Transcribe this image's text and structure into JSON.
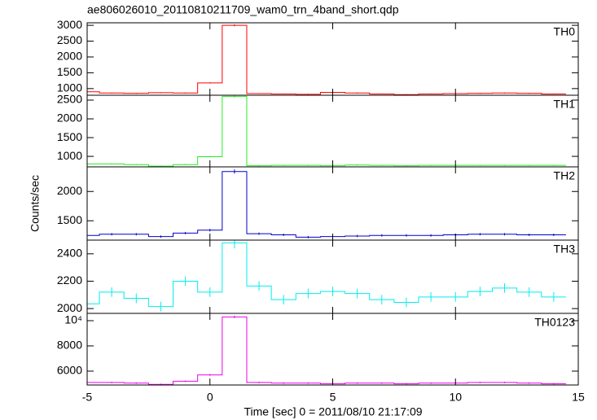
{
  "title": "ae806026010_20110810211709_wam0_trn_4band_short.qdp",
  "x_label": "Time [sec] 0 = 2011/08/10 21:17:09",
  "y_label": "Counts/sec",
  "chart_data": [
    {
      "type": "line",
      "name": "TH0",
      "color": "#ff0000",
      "x": [
        -5,
        -4,
        -3,
        -2,
        -1,
        0,
        1,
        2,
        3,
        4,
        5,
        6,
        7,
        8,
        9,
        10,
        11,
        12,
        13,
        14
      ],
      "values": [
        900,
        860,
        850,
        870,
        860,
        1180,
        3000,
        840,
        830,
        820,
        880,
        860,
        830,
        810,
        830,
        840,
        850,
        860,
        850,
        830
      ],
      "errors": [
        15,
        15,
        15,
        15,
        15,
        18,
        30,
        15,
        15,
        15,
        15,
        15,
        15,
        15,
        15,
        15,
        15,
        15,
        15,
        15
      ],
      "xlim": [
        -5,
        15
      ],
      "xticks": [
        -5,
        0,
        5,
        10,
        15
      ],
      "ylim": [
        790,
        3080
      ],
      "yticks": [
        1000,
        1500,
        2000,
        2500,
        3000
      ]
    },
    {
      "type": "line",
      "name": "TH1",
      "color": "#22ee22",
      "x": [
        -5,
        -4,
        -3,
        -2,
        -1,
        0,
        1,
        2,
        3,
        4,
        5,
        6,
        7,
        8,
        9,
        10,
        11,
        12,
        13,
        14
      ],
      "values": [
        800,
        800,
        780,
        740,
        780,
        990,
        2600,
        750,
        760,
        760,
        750,
        770,
        760,
        750,
        760,
        760,
        760,
        760,
        760,
        760
      ],
      "errors": [
        15,
        15,
        15,
        15,
        15,
        18,
        30,
        15,
        15,
        15,
        15,
        15,
        15,
        15,
        15,
        15,
        15,
        15,
        15,
        15
      ],
      "xlim": [
        -5,
        15
      ],
      "xticks": [
        -5,
        0,
        5,
        10,
        15
      ],
      "ylim": [
        720,
        2630
      ],
      "yticks": [
        1000,
        1500,
        2000,
        2500
      ]
    },
    {
      "type": "line",
      "name": "TH2",
      "color": "#0000cc",
      "x": [
        -5,
        -4,
        -3,
        -2,
        -1,
        0,
        1,
        2,
        3,
        4,
        5,
        6,
        7,
        8,
        9,
        10,
        11,
        12,
        13,
        14
      ],
      "values": [
        1250,
        1270,
        1270,
        1230,
        1290,
        1340,
        2340,
        1280,
        1260,
        1220,
        1230,
        1240,
        1250,
        1250,
        1250,
        1260,
        1270,
        1270,
        1260,
        1260
      ],
      "errors": [
        20,
        20,
        20,
        20,
        20,
        22,
        35,
        20,
        20,
        20,
        20,
        20,
        20,
        20,
        20,
        20,
        20,
        20,
        20,
        20
      ],
      "xlim": [
        -5,
        15
      ],
      "xticks": [
        -5,
        0,
        5,
        10,
        15
      ],
      "ylim": [
        1170,
        2420
      ],
      "yticks": [
        1500,
        2000
      ]
    },
    {
      "type": "line",
      "name": "TH3",
      "color": "#00eeee",
      "x": [
        -5,
        -4,
        -3,
        -2,
        -1,
        0,
        1,
        2,
        3,
        4,
        5,
        6,
        7,
        8,
        9,
        10,
        11,
        12,
        13,
        14
      ],
      "values": [
        2035,
        2120,
        2075,
        2015,
        2200,
        2120,
        2480,
        2165,
        2065,
        2110,
        2125,
        2110,
        2065,
        2045,
        2085,
        2085,
        2125,
        2150,
        2120,
        2085
      ],
      "errors": [
        35,
        35,
        35,
        35,
        35,
        35,
        40,
        35,
        35,
        35,
        35,
        35,
        35,
        35,
        35,
        35,
        35,
        35,
        35,
        35
      ],
      "xlim": [
        -5,
        15
      ],
      "xticks": [
        -5,
        0,
        5,
        10,
        15
      ],
      "ylim": [
        1965,
        2500
      ],
      "yticks": [
        2000,
        2200,
        2400
      ]
    },
    {
      "type": "line",
      "name": "TH0123",
      "color": "#ee00ee",
      "x": [
        -5,
        -4,
        -3,
        -2,
        -1,
        0,
        1,
        2,
        3,
        4,
        5,
        6,
        7,
        8,
        9,
        10,
        11,
        12,
        13,
        14
      ],
      "values": [
        5100,
        5100,
        5050,
        4950,
        5200,
        5700,
        10300,
        5100,
        5050,
        5050,
        5000,
        5050,
        5050,
        5000,
        5050,
        5050,
        5100,
        5100,
        5050,
        5000
      ],
      "errors": [
        60,
        60,
        60,
        60,
        60,
        70,
        100,
        60,
        60,
        60,
        60,
        60,
        60,
        60,
        60,
        60,
        60,
        60,
        60,
        60
      ],
      "xlim": [
        -5,
        15
      ],
      "xticks": [
        -5,
        0,
        5,
        10,
        15
      ],
      "ylim": [
        4900,
        10580
      ],
      "yticks": [
        6000,
        8000,
        {
          "value": 10000,
          "label": "10⁴"
        }
      ]
    }
  ]
}
